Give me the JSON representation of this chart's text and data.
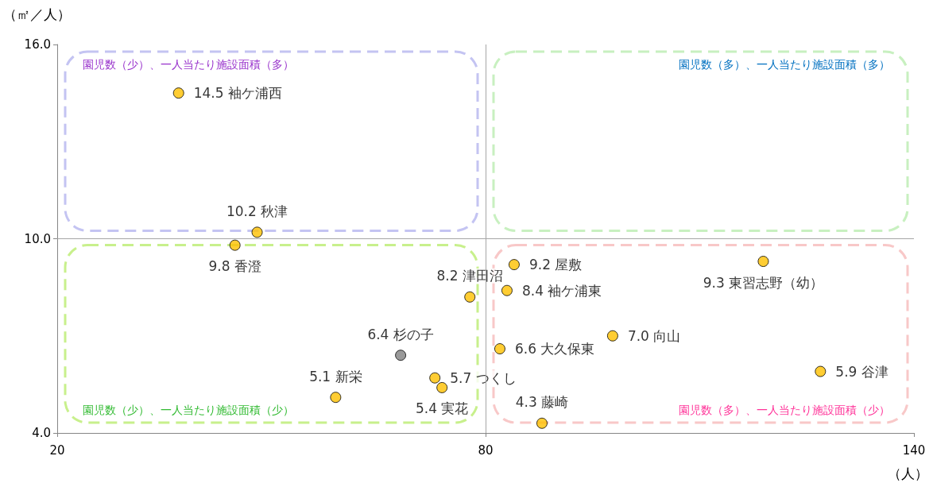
{
  "chart_data": {
    "type": "scatter",
    "xlabel": "（人）",
    "ylabel": "（㎡／人）",
    "x": [
      37.0,
      48.0,
      44.9,
      77.8,
      68.1,
      72.9,
      73.9,
      59.0,
      84.0,
      83.0,
      118.9,
      97.8,
      82.0,
      126.9,
      87.9
    ],
    "values": [
      14.5,
      10.2,
      9.8,
      8.2,
      6.4,
      5.7,
      5.4,
      5.1,
      9.2,
      8.4,
      9.3,
      7.0,
      6.6,
      5.9,
      4.3
    ],
    "colors": [
      "#ffc000",
      "#ffc000",
      "#ffc000",
      "#ffc000",
      "#7f7f7f",
      "#ffc000",
      "#ffc000",
      "#ffc000",
      "#ffc000",
      "#ffc000",
      "#ffc000",
      "#ffc000",
      "#ffc000",
      "#ffc000",
      "#ffc000"
    ],
    "value_labels": [
      "14.5 袖ケ浦西",
      "10.2 秋津",
      "9.8 香澄",
      "8.2 津田沼",
      "6.4 杉の子",
      "5.7 つくし",
      "5.4 実花",
      "5.1 新栄",
      "9.2 屋敷",
      "8.4 袖ケ浦東",
      "9.3 東習志野（幼）",
      "7.0 向山",
      "6.6 大久保東",
      "5.9 谷津",
      "4.3 藤崎"
    ],
    "xlim": [
      20,
      140
    ],
    "xticks": [
      20,
      80,
      140
    ],
    "ylim": [
      4,
      16
    ],
    "yticks": [
      {
        "value": 4,
        "label": "4.0"
      },
      {
        "value": 10,
        "label": "10.0"
      },
      {
        "value": 16,
        "label": "16.0"
      }
    ],
    "ref_lines": [
      {
        "axis": "x",
        "value": 80,
        "color": "#a6a6a6"
      },
      {
        "axis": "y",
        "value": 10,
        "color": "#a6a6a6"
      }
    ],
    "marker": "circle",
    "grid": false,
    "annotations": [
      "園児数（少）、一人当たり施設面積（多）",
      "園児数（多）、一人当たり施設面積（多）",
      "園児数（少）、一人当たり施設面積（少）",
      "園児数（多）、一人当たり施設面積（少）"
    ]
  }
}
